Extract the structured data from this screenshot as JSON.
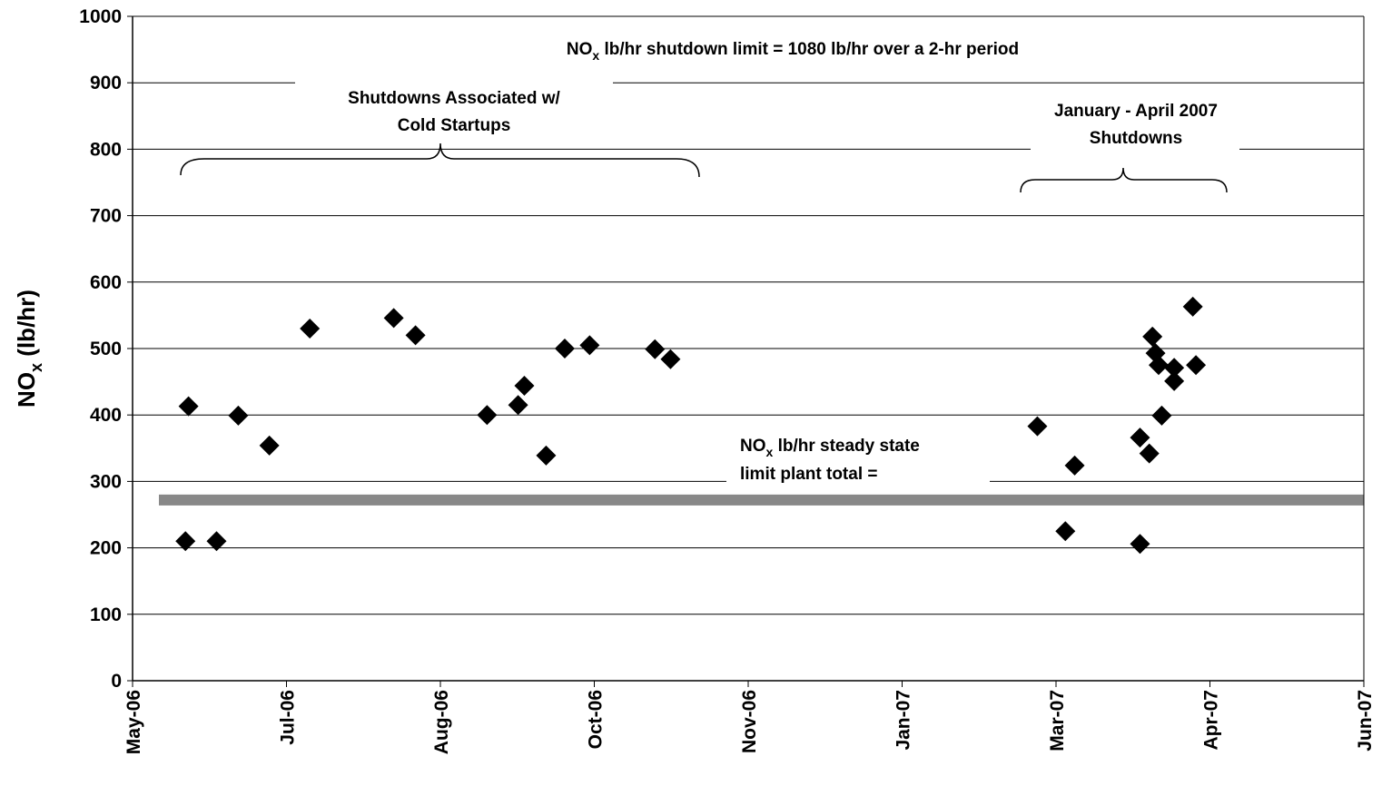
{
  "chart_data": {
    "type": "scatter",
    "y_label": {
      "main": "NO",
      "sub": "x",
      "rest": " (lb/hr)"
    },
    "xlim": [
      38838,
      39234
    ],
    "xticks": [
      {
        "value": 38838,
        "label": "May-06"
      },
      {
        "value": 38887.5,
        "label": "Jul-06"
      },
      {
        "value": 38937,
        "label": "Aug-06"
      },
      {
        "value": 38986.5,
        "label": "Oct-06"
      },
      {
        "value": 39036,
        "label": "Nov-06"
      },
      {
        "value": 39085.5,
        "label": "Jan-07"
      },
      {
        "value": 39135,
        "label": "Mar-07"
      },
      {
        "value": 39184.5,
        "label": "Apr-07"
      },
      {
        "value": 39234,
        "label": "Jun-07"
      }
    ],
    "ylim": [
      0,
      1000
    ],
    "yticks": [
      0,
      100,
      200,
      300,
      400,
      500,
      600,
      700,
      800,
      900,
      1000
    ],
    "grid": true,
    "series": [
      {
        "color": "#000000",
        "x": [
          38855,
          38856,
          38865,
          38872,
          38882,
          38895,
          38922,
          38929,
          38952,
          38962,
          38964,
          38971,
          38977,
          38985,
          39006,
          39011,
          39129,
          39138,
          39141,
          39162,
          39162,
          39165,
          39166,
          39167,
          39168,
          39169,
          39173,
          39173,
          39179,
          39180
        ],
        "values": [
          210,
          413,
          210,
          399,
          354,
          530,
          546,
          520,
          400,
          415,
          444,
          339,
          500,
          505,
          499,
          484,
          383,
          225,
          324,
          206,
          366,
          342,
          518,
          493,
          475,
          399,
          471,
          451,
          563,
          475
        ]
      }
    ],
    "reference_line": {
      "value": 272,
      "color": "#888888"
    },
    "annotations": {
      "shutdown_limit": {
        "main": "NO",
        "sub": "x",
        "rest": " lb/hr shutdown limit = 1080 lb/hr over a 2-hr period"
      },
      "cold_startups": [
        "Shutdowns Associated w/",
        "Cold Startups"
      ],
      "jan_apr": [
        "January - April 2007",
        "Shutdowns"
      ],
      "steady_state": {
        "main": "NO",
        "sub": "x",
        "rest": " lb/hr steady state",
        "line2": "limit plant total ="
      }
    }
  }
}
